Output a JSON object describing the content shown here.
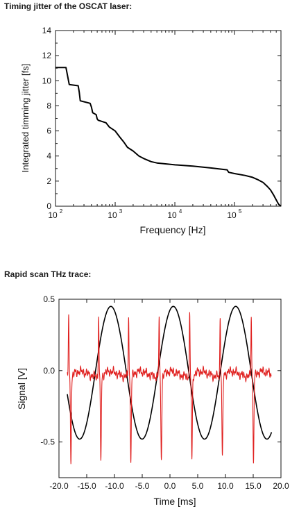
{
  "chart_data": [
    {
      "type": "line",
      "heading": "Timing jitter of the OSCAT laser:",
      "xlabel": "Frequency [Hz]",
      "ylabel": "Integrated timming jitter [fs]",
      "xscale": "log",
      "xlim": [
        100,
        600000
      ],
      "ylim": [
        0,
        14
      ],
      "x_ticks": [
        {
          "base": "10",
          "exp": "2",
          "value": 100
        },
        {
          "base": "10",
          "exp": "3",
          "value": 1000
        },
        {
          "base": "10",
          "exp": "4",
          "value": 10000
        },
        {
          "base": "10",
          "exp": "5",
          "value": 100000
        }
      ],
      "y_ticks": [
        "0",
        "2",
        "4",
        "6",
        "8",
        "10",
        "12",
        "14"
      ],
      "series": [
        {
          "color": "#000000",
          "x": [
            100,
            150,
            170,
            240,
            250,
            260,
            380,
            400,
            420,
            480,
            500,
            520,
            700,
            800,
            1000,
            1200,
            1400,
            1600,
            2000,
            2500,
            3000,
            4000,
            5000,
            10000,
            20000,
            40000,
            75000,
            80000,
            100000,
            150000,
            200000,
            250000,
            300000,
            350000,
            400000,
            450000,
            500000,
            550000,
            600000
          ],
          "y": [
            11.05,
            11.05,
            9.7,
            9.6,
            9.1,
            8.4,
            8.2,
            7.9,
            7.45,
            7.3,
            6.95,
            6.85,
            6.65,
            6.3,
            6.0,
            5.5,
            5.1,
            4.7,
            4.4,
            4.0,
            3.8,
            3.55,
            3.45,
            3.3,
            3.2,
            3.05,
            2.9,
            2.7,
            2.6,
            2.45,
            2.3,
            2.1,
            1.9,
            1.6,
            1.3,
            0.9,
            0.5,
            0.15,
            0.0
          ]
        }
      ]
    },
    {
      "type": "line",
      "heading": "Rapid scan THz trace:",
      "xlabel": "Time [ms]",
      "ylabel": "Signal [V]",
      "xlim": [
        -20,
        20
      ],
      "ylim": [
        -0.75,
        0.5
      ],
      "x_ticks": [
        "-20.0",
        "-15.0",
        "-10.0",
        "-5.0",
        "0.0",
        "5.0",
        "10.0",
        "15.0",
        "20.0"
      ],
      "y_ticks": [
        {
          "label": "0.5",
          "value": 0.5
        },
        {
          "label": "0.0",
          "value": 0.0
        },
        {
          "label": "-0.5",
          "value": -0.5
        }
      ],
      "series": [
        {
          "color": "#000000",
          "shape": "sine",
          "x_range": [
            -18.5,
            18.3
          ],
          "amplitude": 0.465,
          "offset": -0.015,
          "period": 11.25,
          "peak_x": 0.6
        },
        {
          "color": "#e0201f",
          "shape": "pulse train",
          "x_range": [
            -18.5,
            18.3
          ],
          "baseline": -0.04,
          "pulse_x": [
            -18.2,
            -12.8,
            -7.4,
            -1.9,
            3.6,
            9.1,
            14.7
          ],
          "pulse_peak": 0.42,
          "pulse_trough": -0.62
        }
      ]
    }
  ]
}
